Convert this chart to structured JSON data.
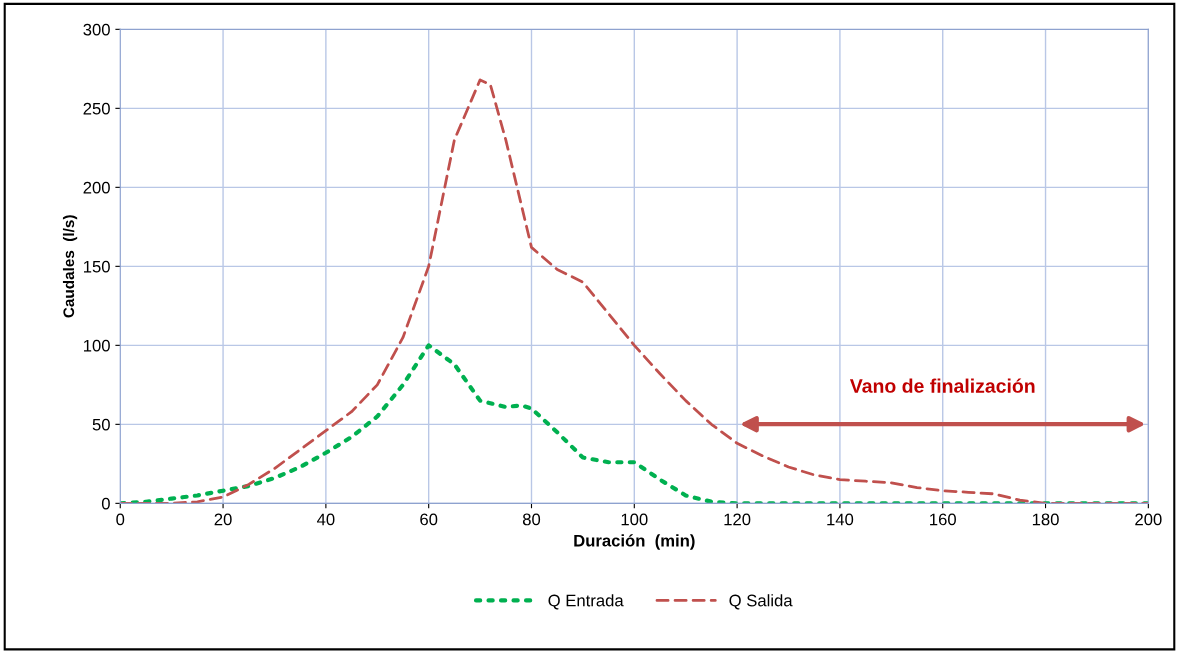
{
  "chart_data": {
    "type": "line",
    "xlabel": "Duración  (min)",
    "ylabel": "Caudales  (l/s)",
    "xlim": [
      0,
      200
    ],
    "xticks": [
      0,
      20,
      40,
      60,
      80,
      100,
      120,
      140,
      160,
      180,
      200
    ],
    "ylim": [
      0,
      300
    ],
    "yticks": [
      0,
      50,
      100,
      150,
      200,
      250,
      300
    ],
    "grid": true,
    "legend": "bottom",
    "annotations": [
      "Vano de finalización"
    ],
    "series": [
      {
        "name": "Q Entrada",
        "color": "#00b050",
        "line_style": "dotted",
        "x": [
          0,
          5,
          10,
          15,
          20,
          25,
          30,
          35,
          40,
          45,
          50,
          55,
          60,
          65,
          70,
          75,
          78,
          80,
          85,
          90,
          95,
          100,
          105,
          110,
          115,
          120,
          200
        ],
        "values": [
          0,
          1,
          3,
          5,
          8,
          11,
          16,
          23,
          32,
          42,
          55,
          75,
          100,
          88,
          65,
          61,
          62,
          60,
          45,
          29,
          26,
          26,
          15,
          5,
          1,
          0,
          0
        ]
      },
      {
        "name": "Q Salida",
        "color": "#c0504d",
        "line_style": "dashed",
        "x": [
          0,
          10,
          15,
          20,
          25,
          30,
          35,
          40,
          45,
          50,
          55,
          60,
          65,
          70,
          72,
          75,
          80,
          85,
          90,
          95,
          100,
          105,
          110,
          115,
          120,
          125,
          130,
          135,
          140,
          145,
          150,
          155,
          160,
          165,
          170,
          175,
          180,
          200
        ],
        "values": [
          0,
          0,
          1,
          4,
          12,
          22,
          34,
          46,
          58,
          75,
          105,
          150,
          230,
          268,
          265,
          230,
          162,
          148,
          140,
          120,
          100,
          82,
          65,
          50,
          38,
          30,
          23,
          18,
          15,
          14,
          13,
          10,
          8,
          7,
          6,
          2,
          0,
          0
        ]
      }
    ]
  }
}
